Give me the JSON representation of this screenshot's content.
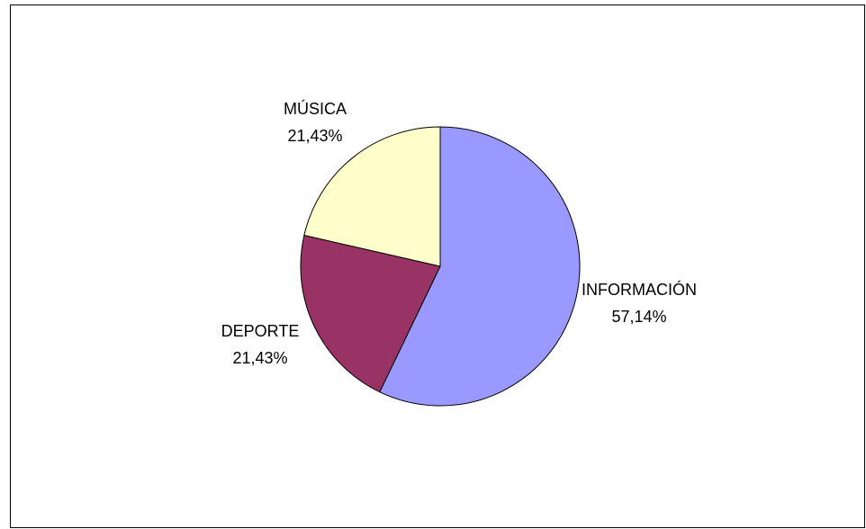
{
  "chart_data": {
    "type": "pie",
    "slices": [
      {
        "label": "INFORMACIÓN",
        "value": 57.14,
        "value_text": "57,14%",
        "color": "#9999FF"
      },
      {
        "label": "DEPORTE",
        "value": 21.43,
        "value_text": "21,43%",
        "color": "#993366"
      },
      {
        "label": "MÚSICA",
        "value": 21.43,
        "value_text": "21,43%",
        "color": "#FFFFCC"
      }
    ],
    "start_angle_deg": 0,
    "direction": "clockwise",
    "stroke_color": "#000000"
  }
}
